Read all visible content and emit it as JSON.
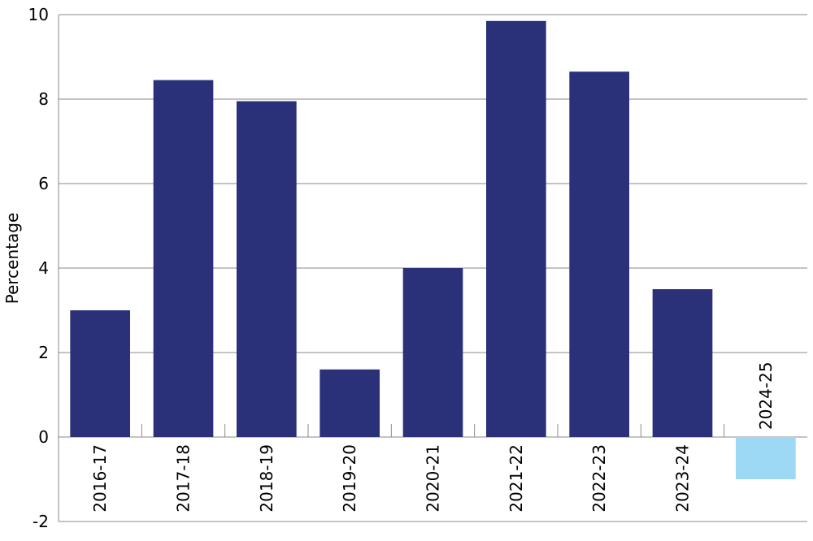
{
  "chart_data": {
    "type": "bar",
    "y_label": "Percentage",
    "categories": [
      "2016-17",
      "2017-18",
      "2018-19",
      "2019-20",
      "2020-21",
      "2021-22",
      "2022-23",
      "2023-24",
      "2024-25"
    ],
    "values": [
      3.0,
      8.45,
      7.95,
      1.6,
      4.0,
      9.85,
      8.65,
      3.5,
      -1.0
    ],
    "colors": [
      "#2a3179",
      "#2a3179",
      "#2a3179",
      "#2a3179",
      "#2a3179",
      "#2a3179",
      "#2a3179",
      "#2a3179",
      "#9dd8f5"
    ],
    "ylim": [
      -2,
      10
    ],
    "yticks": [
      -2,
      0,
      2,
      4,
      6,
      8,
      10
    ],
    "grid": true
  }
}
